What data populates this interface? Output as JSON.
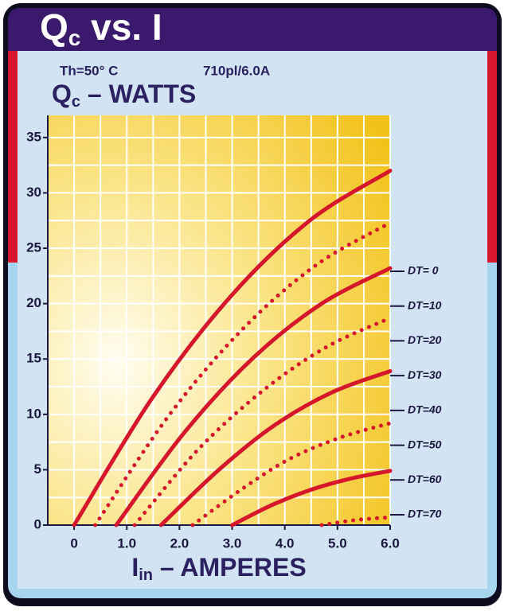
{
  "chart_data": {
    "type": "line",
    "title": {
      "symbol": "Q",
      "subscript": "c",
      "rest": " vs. I"
    },
    "subtitle": [
      "Th=50° C",
      "710pl/6.0A"
    ],
    "y_label": {
      "symbol": "Q",
      "subscript": "c",
      "rest": " – WATTS"
    },
    "x_label": {
      "symbol": "I",
      "subscript": "in",
      "rest": " – AMPERES"
    },
    "xlim": [
      -0.5,
      6
    ],
    "ylim": [
      0,
      37
    ],
    "xticks": [
      0,
      {
        "value": 1,
        "label": "1.0"
      },
      {
        "value": 2,
        "label": "2.0"
      },
      {
        "value": 3,
        "label": "3.0"
      },
      {
        "value": 4,
        "label": "4.0"
      },
      {
        "value": 5,
        "label": "5.0"
      },
      {
        "value": 6,
        "label": "6.0"
      }
    ],
    "yticks": [
      0,
      5,
      10,
      15,
      20,
      25,
      30,
      35
    ],
    "grid": true,
    "series": [
      {
        "name": "DT= 0",
        "color": "#d5162b",
        "style": "solid",
        "x": [
          0,
          1.5,
          3,
          4.5,
          6
        ],
        "values": [
          0,
          11.6,
          20.8,
          27.6,
          32
        ]
      },
      {
        "name": "DT=10",
        "color": "#d5162b",
        "style": "dotted",
        "x": [
          0.4,
          1.8,
          3.2,
          4.6,
          6
        ],
        "values": [
          0,
          9.9,
          17.7,
          23.5,
          27.3
        ]
      },
      {
        "name": "DT=20",
        "color": "#d5162b",
        "style": "solid",
        "x": [
          0.8,
          2.1,
          3.4,
          4.7,
          6
        ],
        "values": [
          0,
          8.4,
          15.1,
          20,
          23.2
        ]
      },
      {
        "name": "DT=30",
        "color": "#d5162b",
        "style": "dotted",
        "x": [
          1.15,
          2.35,
          3.6,
          4.8,
          6
        ],
        "values": [
          0,
          6.8,
          12.2,
          16.1,
          18.7
        ]
      },
      {
        "name": "DT=40",
        "color": "#d5162b",
        "style": "solid",
        "x": [
          1.65,
          2.75,
          3.8,
          4.9,
          6
        ],
        "values": [
          0,
          5,
          9,
          12,
          13.9
        ]
      },
      {
        "name": "DT=50",
        "color": "#d5162b",
        "style": "dotted",
        "x": [
          2.25,
          3.2,
          4.1,
          5.05,
          6
        ],
        "values": [
          0,
          3.3,
          6,
          7.9,
          9.2
        ]
      },
      {
        "name": "DT=60",
        "color": "#d5162b",
        "style": "solid",
        "x": [
          3,
          3.75,
          4.5,
          5.25,
          6
        ],
        "values": [
          0,
          1.8,
          3.2,
          4.2,
          4.9
        ]
      },
      {
        "name": "DT=70",
        "color": "#d5162b",
        "style": "dotted",
        "x": [
          4.7,
          5.35,
          6
        ],
        "values": [
          0,
          0.46,
          0.7
        ]
      }
    ]
  }
}
